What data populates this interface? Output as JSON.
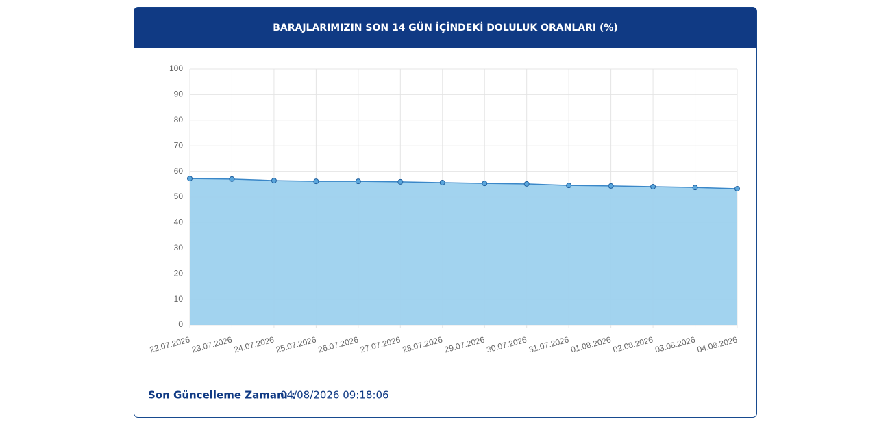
{
  "chart_data": {
    "type": "area",
    "title": "BARAJLARIMIZIN SON 14 GÜN İÇİNDEKİ DOLULUK ORANLARI (%)",
    "categories": [
      "22.07.2026",
      "23.07.2026",
      "24.07.2026",
      "25.07.2026",
      "26.07.2026",
      "27.07.2026",
      "28.07.2026",
      "29.07.2026",
      "30.07.2026",
      "31.07.2026",
      "01.08.2026",
      "02.08.2026",
      "03.08.2026",
      "04.08.2026"
    ],
    "values": [
      57.2,
      57.0,
      56.4,
      56.1,
      56.1,
      55.9,
      55.6,
      55.3,
      55.1,
      54.5,
      54.3,
      54.0,
      53.7,
      53.2
    ],
    "color": "#3a87c8",
    "fill_color": "#9dd1ee",
    "ylim": [
      0,
      100
    ],
    "yticks": [
      0,
      10,
      20,
      30,
      40,
      50,
      60,
      70,
      80,
      90,
      100
    ],
    "grid": true
  },
  "footer": {
    "label": "Son Güncelleme Zamanı :",
    "value": "04/08/2026 09:18:06"
  }
}
